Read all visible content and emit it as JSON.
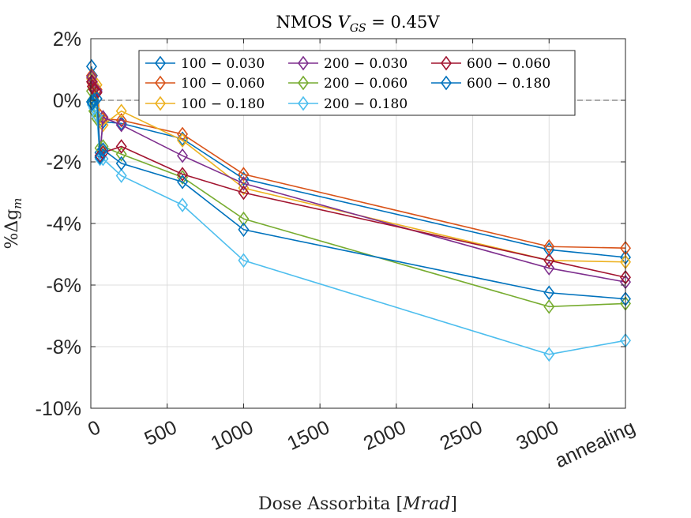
{
  "chart_data": {
    "type": "line",
    "title": "NMOS V_GS = 0.45V",
    "title_parts": {
      "prefix": "NMOS ",
      "var": "V",
      "sub": "GS",
      "suffix": " = 0.45V"
    },
    "xlabel": "Dose Assorbita [Mrad]",
    "xlabel_parts": {
      "prefix": "Dose Assorbita [",
      "unit": "Mrad",
      "suffix": "]"
    },
    "ylabel": "%Δg_m",
    "ylabel_parts": {
      "prefix": "%Δg",
      "sub": "m"
    },
    "x_ticks": [
      0,
      500,
      1000,
      1500,
      2000,
      2500,
      3000,
      "annealing"
    ],
    "x_tick_positions": [
      0,
      500,
      1000,
      1500,
      2000,
      2500,
      3000,
      3500
    ],
    "y_ticks": [
      "2%",
      "0%",
      "-2%",
      "-4%",
      "-6%",
      "-8%",
      "-10%"
    ],
    "y_tick_values": [
      2,
      0,
      -2,
      -4,
      -6,
      -8,
      -10
    ],
    "xlim": [
      0,
      3500
    ],
    "ylim": [
      -10,
      2
    ],
    "grid": true,
    "legend_position": "top",
    "reference_line": {
      "y": 0,
      "style": "dashed",
      "color": "#555555"
    },
    "x": [
      5,
      10,
      20,
      40,
      60,
      80,
      200,
      600,
      1000,
      3000,
      3500
    ],
    "series": [
      {
        "name": "100 − 0.030",
        "color": "#0072bd",
        "values": [
          1.1,
          0.8,
          0.5,
          0.3,
          -1.7,
          -0.7,
          -0.75,
          -1.25,
          -2.55,
          -4.85,
          -5.1
        ]
      },
      {
        "name": "100 − 0.060",
        "color": "#d95319",
        "values": [
          0.8,
          0.6,
          0.45,
          0.35,
          -0.5,
          -0.6,
          -0.65,
          -1.1,
          -2.4,
          -4.75,
          -4.8
        ]
      },
      {
        "name": "100 − 0.180",
        "color": "#edb120",
        "values": [
          0.7,
          0.55,
          0.5,
          0.5,
          -0.65,
          -0.8,
          -0.35,
          -1.3,
          -2.85,
          -5.2,
          -5.25
        ]
      },
      {
        "name": "200 − 0.030",
        "color": "#7e2f8e",
        "values": [
          0.75,
          0.6,
          0.4,
          0.3,
          -1.85,
          -0.55,
          -0.8,
          -1.8,
          -2.7,
          -5.45,
          -5.9
        ]
      },
      {
        "name": "200 − 0.060",
        "color": "#77ac30",
        "values": [
          0.3,
          0.0,
          -0.35,
          -0.6,
          -1.55,
          -1.5,
          -1.75,
          -2.5,
          -3.85,
          -6.7,
          -6.6
        ]
      },
      {
        "name": "200 − 0.180",
        "color": "#4dbeee",
        "values": [
          -0.05,
          -0.15,
          -0.25,
          -0.5,
          -1.9,
          -1.9,
          -2.45,
          -3.4,
          -5.2,
          -8.25,
          -7.8
        ]
      },
      {
        "name": "600 − 0.060",
        "color": "#a2142f",
        "values": [
          0.6,
          0.45,
          0.35,
          0.25,
          -1.8,
          -1.7,
          -1.5,
          -2.4,
          -3.0,
          -5.2,
          -5.75
        ]
      },
      {
        "name": "600 − 0.180",
        "color": "#0072bd",
        "values": [
          -0.05,
          -0.1,
          0.0,
          0.05,
          -1.85,
          -1.6,
          -2.05,
          -2.65,
          -4.2,
          -6.25,
          -6.45
        ]
      }
    ]
  }
}
